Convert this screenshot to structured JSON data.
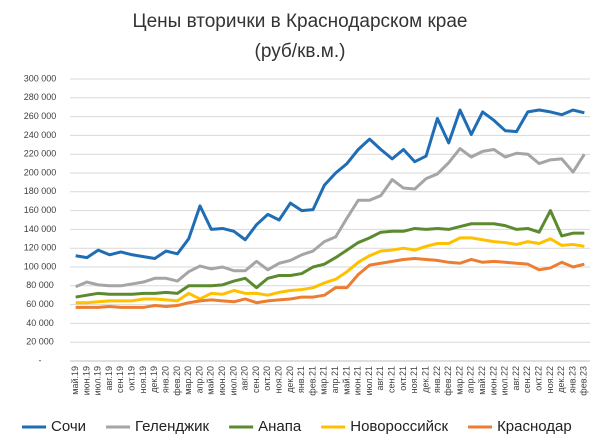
{
  "chart_data": {
    "type": "line",
    "title": "Цены вторички в Краснодарском крае",
    "subtitle": "(руб/кв.м.)",
    "categories": [
      "май.19",
      "июн.19",
      "июл.19",
      "авг.19",
      "сен.19",
      "окт.19",
      "ноя.19",
      "дек.19",
      "янв.20",
      "фев.20",
      "мар.20",
      "апр.20",
      "май.20",
      "июн.20",
      "июл.20",
      "авг.20",
      "сен.20",
      "окт.20",
      "ноя.20",
      "дек.20",
      "янв.21",
      "фев.21",
      "мар.21",
      "апр.21",
      "май.21",
      "июн.21",
      "июл.21",
      "авг.21",
      "сен.21",
      "окт.21",
      "ноя.21",
      "дек.21",
      "янв.22",
      "фев.22",
      "мар.22",
      "апр.22",
      "май.22",
      "июн.22",
      "июл.22",
      "авг.22",
      "сен.22",
      "окт.22",
      "ноя.22",
      "дек.22",
      "янв.23",
      "фев.23"
    ],
    "series": [
      {
        "name": "Сочи",
        "color": "#1f6db4",
        "values": [
          112000,
          110000,
          118000,
          113000,
          116000,
          113000,
          111000,
          109000,
          117000,
          114000,
          130000,
          165000,
          140000,
          141000,
          138000,
          129000,
          145000,
          156000,
          150000,
          168000,
          160000,
          161000,
          187000,
          200000,
          210000,
          225000,
          236000,
          225000,
          215000,
          225000,
          212000,
          218000,
          258000,
          232000,
          267000,
          241000,
          265000,
          256000,
          245000,
          244000,
          265000,
          267000,
          265000,
          262000,
          267000,
          264000
        ]
      },
      {
        "name": "Геленджик",
        "color": "#a5a5a5",
        "values": [
          79000,
          84000,
          81000,
          80000,
          80000,
          82000,
          84000,
          88000,
          88000,
          85000,
          95000,
          101000,
          98000,
          100000,
          96000,
          96000,
          106000,
          97000,
          104000,
          107000,
          113000,
          117000,
          127000,
          132000,
          152000,
          171000,
          171000,
          176000,
          193000,
          184000,
          183000,
          194000,
          199000,
          211000,
          226000,
          217000,
          223000,
          225000,
          217000,
          221000,
          220000,
          210000,
          214000,
          215000,
          201000,
          220000
        ]
      },
      {
        "name": "Анапа",
        "color": "#5b8a2f",
        "values": [
          68000,
          70000,
          72000,
          71000,
          71000,
          71000,
          72000,
          72000,
          73000,
          72000,
          80000,
          80000,
          80000,
          81000,
          85000,
          88000,
          78000,
          88000,
          91000,
          91000,
          93000,
          100000,
          103000,
          110000,
          118000,
          126000,
          131000,
          137000,
          138000,
          138000,
          141000,
          140000,
          141000,
          140000,
          143000,
          146000,
          146000,
          146000,
          144000,
          140000,
          141000,
          137000,
          160000,
          133000,
          136000,
          136000
        ]
      },
      {
        "name": "Новороссийск",
        "color": "#ffc000",
        "values": [
          62000,
          62000,
          63000,
          64000,
          64000,
          64000,
          66000,
          66000,
          65000,
          64000,
          72000,
          66000,
          72000,
          71000,
          75000,
          72000,
          72000,
          70000,
          73000,
          75000,
          76000,
          78000,
          83000,
          87000,
          95000,
          105000,
          112000,
          117000,
          118000,
          120000,
          118000,
          122000,
          125000,
          125000,
          131000,
          131000,
          129000,
          127000,
          126000,
          124000,
          127000,
          125000,
          130000,
          123000,
          124000,
          122000
        ]
      },
      {
        "name": "Краснодар",
        "color": "#ed7d31",
        "values": [
          57000,
          57000,
          57000,
          58000,
          57000,
          57000,
          57000,
          59000,
          58000,
          59000,
          62000,
          64000,
          65000,
          64000,
          63000,
          66000,
          62000,
          64000,
          65000,
          66000,
          68000,
          68000,
          70000,
          78000,
          78000,
          92000,
          102000,
          104000,
          106000,
          108000,
          109000,
          108000,
          107000,
          105000,
          104000,
          108000,
          105000,
          106000,
          105000,
          104000,
          103000,
          97000,
          99000,
          105000,
          100000,
          103000
        ]
      }
    ],
    "ylim": [
      0,
      300000
    ],
    "yticks": [
      {
        "value": 0,
        "label": "-"
      },
      {
        "value": 20000,
        "label": "20 000"
      },
      {
        "value": 40000,
        "label": "40 000"
      },
      {
        "value": 60000,
        "label": "60 000"
      },
      {
        "value": 80000,
        "label": "80 000"
      },
      {
        "value": 100000,
        "label": "100 000"
      },
      {
        "value": 120000,
        "label": "120 000"
      },
      {
        "value": 140000,
        "label": "140 000"
      },
      {
        "value": 160000,
        "label": "160 000"
      },
      {
        "value": 180000,
        "label": "180 000"
      },
      {
        "value": 200000,
        "label": "200 000"
      },
      {
        "value": 220000,
        "label": "220 000"
      },
      {
        "value": 240000,
        "label": "240 000"
      },
      {
        "value": 260000,
        "label": "260 000"
      },
      {
        "value": 280000,
        "label": "280 000"
      },
      {
        "value": 300000,
        "label": "300 000"
      }
    ],
    "grid": true
  }
}
